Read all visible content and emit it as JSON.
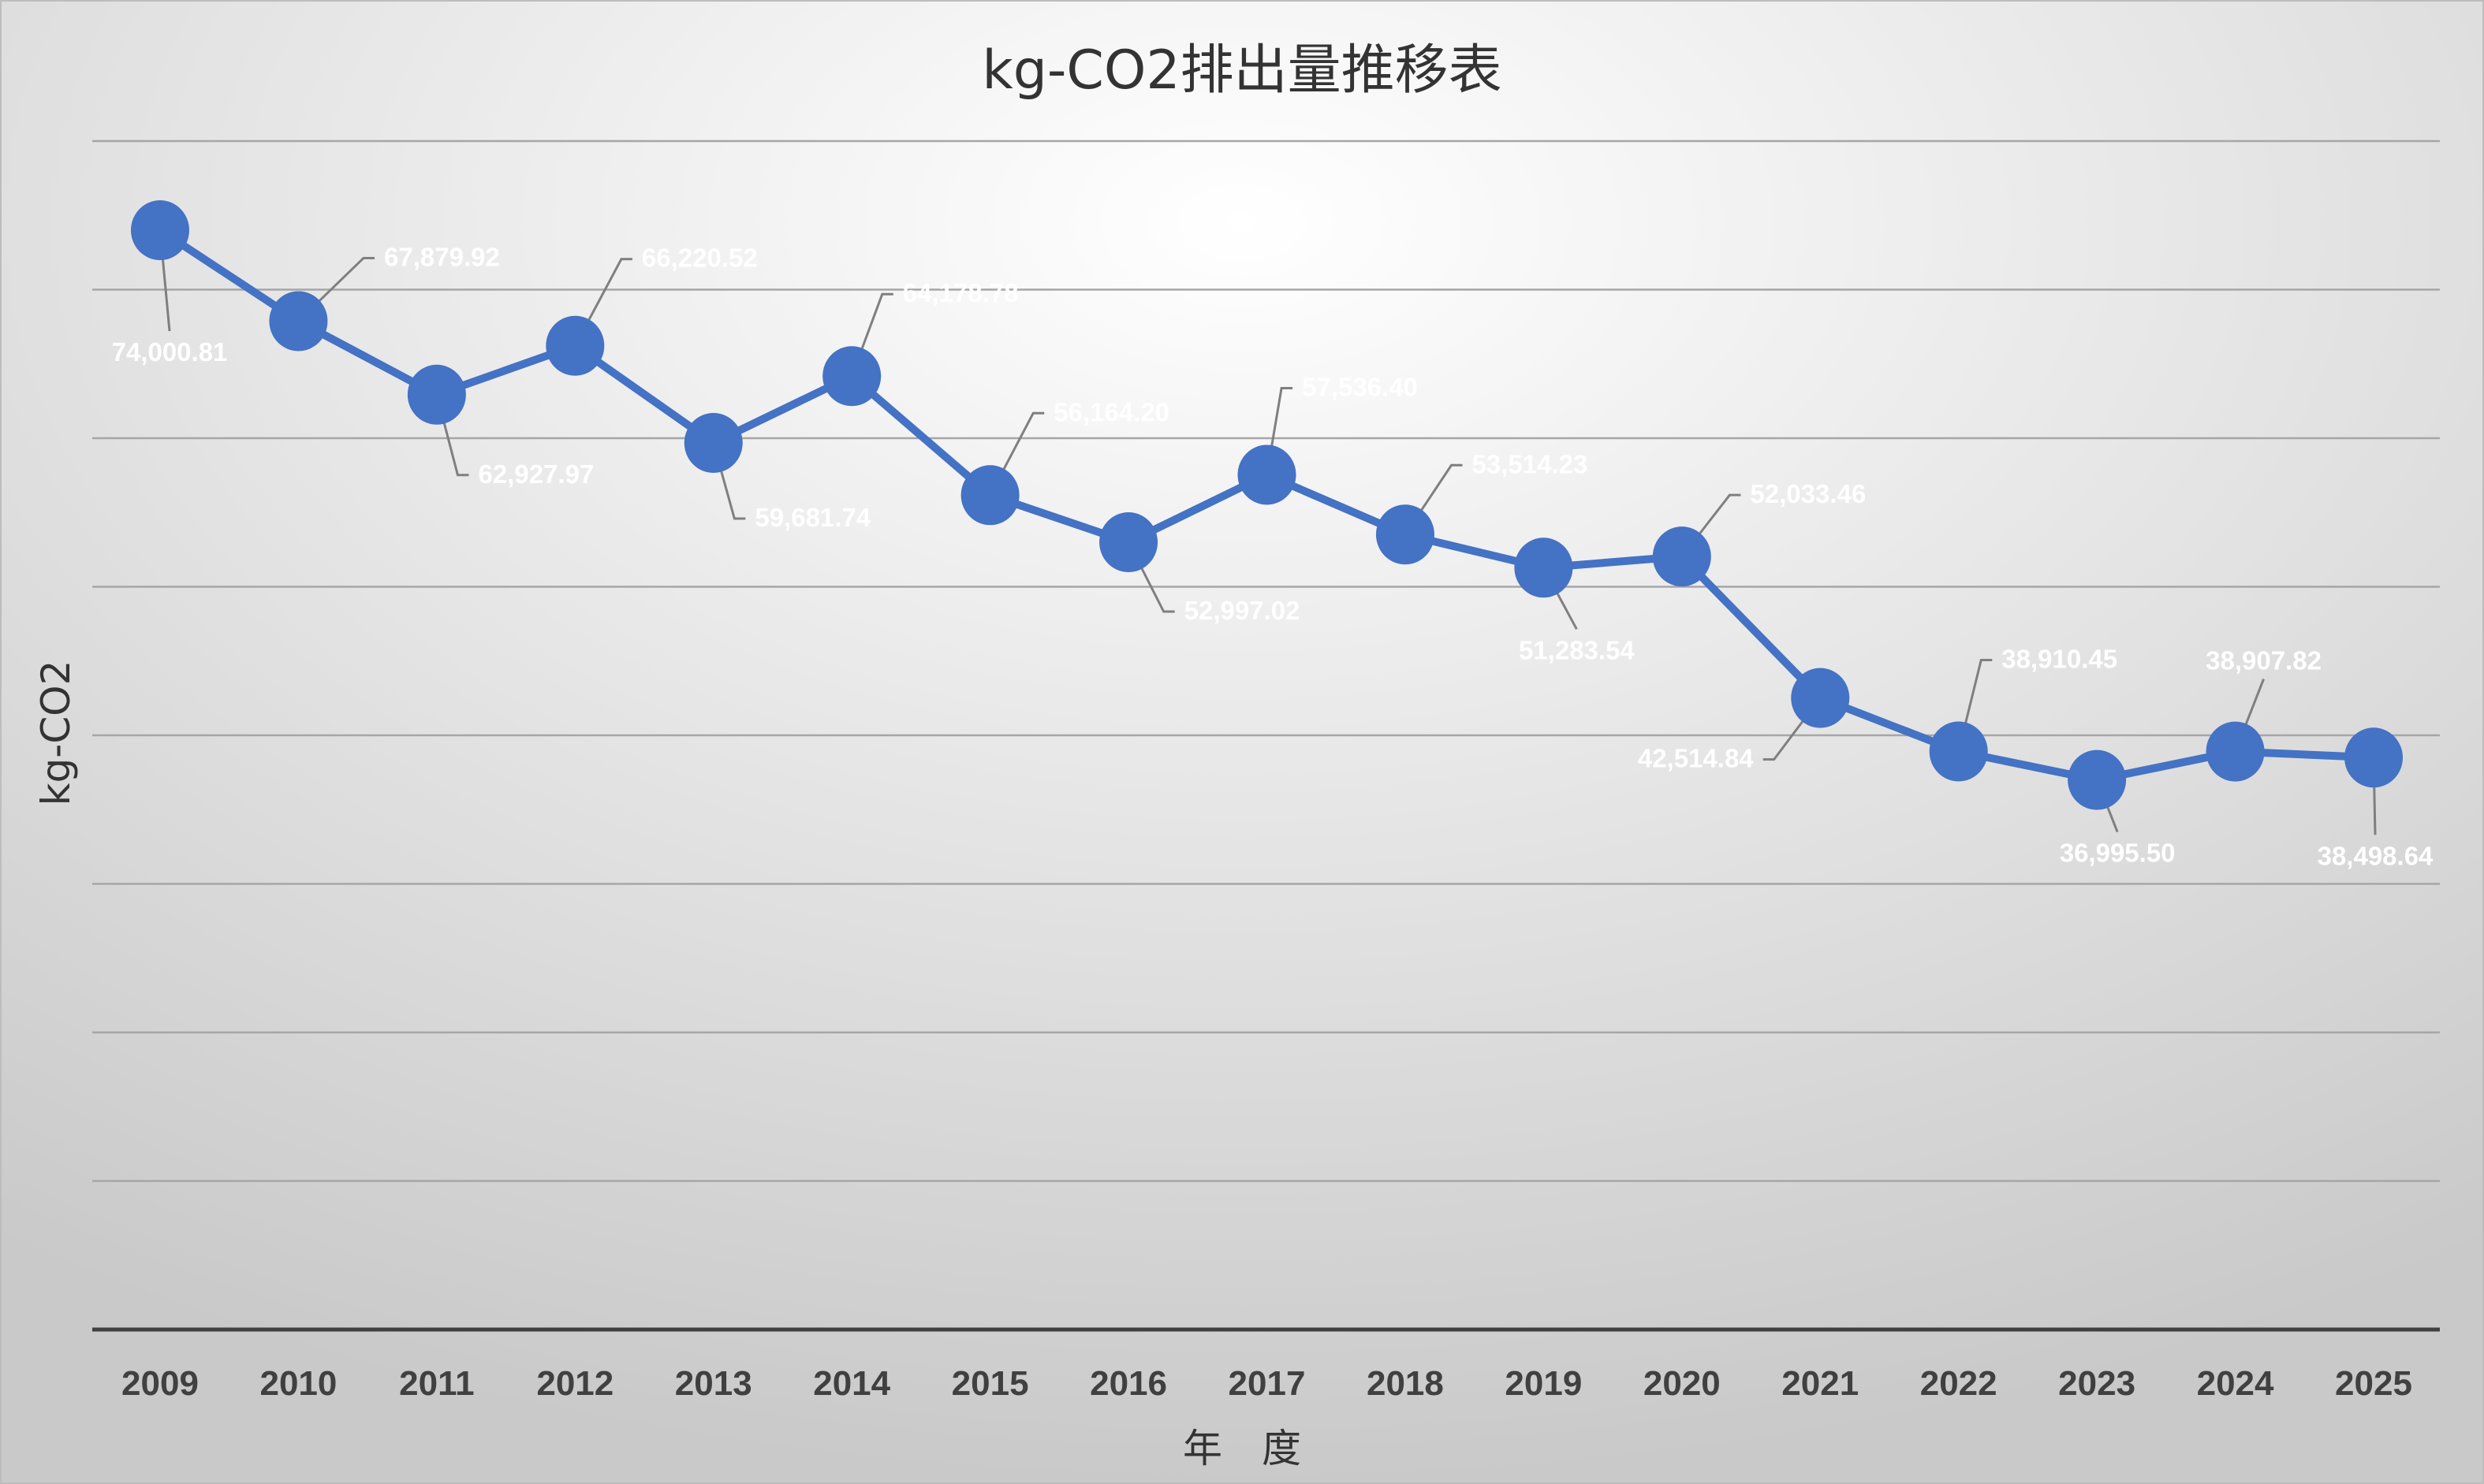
{
  "chart_data": {
    "type": "line",
    "title": "kg-CO2排出量推移表",
    "xlabel": "年　度",
    "ylabel": "kg-CO2",
    "categories": [
      "2009",
      "2010",
      "2011",
      "2012",
      "2013",
      "2014",
      "2015",
      "2016",
      "2017",
      "2018",
      "2019",
      "2020",
      "2021",
      "2022",
      "2023",
      "2024",
      "2025"
    ],
    "series": [
      {
        "name": "kg-CO2",
        "values": [
          74000.81,
          67879.92,
          62927.97,
          66220.52,
          59681.74,
          64178.78,
          56164.2,
          52997.02,
          57536.4,
          53514.23,
          51283.54,
          52033.46,
          42514.84,
          38910.45,
          36995.5,
          38907.82,
          38498.64
        ],
        "labels": [
          "74,000.81",
          "67,879.92",
          "62,927.97",
          "66,220.52",
          "59,681.74",
          "64,178.78",
          "56,164.20",
          "52,997.02",
          "57,536.40",
          "53,514.23",
          "51,283.54",
          "52,033.46",
          "42,514.84",
          "38,910.45",
          "36,995.50",
          "38,907.82",
          "38,498.64"
        ]
      }
    ],
    "ylim": [
      0,
      80000
    ],
    "ystep": 10000,
    "grid": true,
    "legend": "none",
    "colors": {
      "line": "#4472C4",
      "label": "#FFFFFF",
      "grid": "#A6A6A6",
      "axis": "#404040"
    }
  }
}
